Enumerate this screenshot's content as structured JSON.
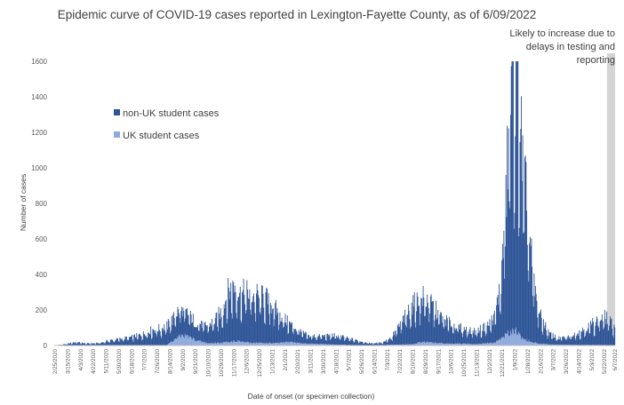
{
  "chart_data": {
    "type": "bar",
    "stacked": true,
    "title": "Epidemic curve of COVID-19 cases reported in Lexington-Fayette County, as of 6/09/2022",
    "xlabel": "Date of onset (or specimen collection)",
    "ylabel": "Number of cases",
    "ylim": [
      0,
      1600
    ],
    "yticks": [
      0,
      200,
      400,
      600,
      800,
      1000,
      1200,
      1400,
      1600
    ],
    "grid": false,
    "legend_position": "upper-left",
    "x_start": "2/25/2020",
    "x_end": "6/7/2022",
    "x_tick_labels": [
      "2/25/2020",
      "3/15/2020",
      "4/3/2020",
      "4/22/2020",
      "5/11/2020",
      "5/30/2020",
      "6/18/2020",
      "7/7/2020",
      "7/26/2020",
      "8/14/2020",
      "9/2/2020",
      "9/21/2020",
      "10/10/2020",
      "10/29/2020",
      "11/17/2020",
      "12/6/2020",
      "12/25/2020",
      "1/13/2021",
      "2/1/2021",
      "2/20/2021",
      "3/11/2021",
      "3/30/2021",
      "4/18/2021",
      "5/7/2021",
      "5/26/2021",
      "6/14/2021",
      "7/3/2021",
      "7/22/2021",
      "8/10/2021",
      "8/29/2021",
      "9/17/2021",
      "10/6/2021",
      "10/25/2021",
      "11/13/2021",
      "12/2/2021",
      "12/21/2021",
      "1/9/2022",
      "1/28/2022",
      "2/16/2022",
      "3/7/2022",
      "3/26/2022",
      "4/14/2022",
      "5/3/2022",
      "5/22/2022",
      "6/7/2022"
    ],
    "series": [
      {
        "name": "non-UK student cases",
        "color": "#2f5597",
        "points": [
          [
            "2/25/2020",
            0
          ],
          [
            "3/14/2020",
            8
          ],
          [
            "3/28/2020",
            18
          ],
          [
            "4/12/2020",
            10
          ],
          [
            "5/1/2020",
            12
          ],
          [
            "5/15/2020",
            25
          ],
          [
            "6/1/2020",
            35
          ],
          [
            "6/20/2020",
            45
          ],
          [
            "7/5/2020",
            60
          ],
          [
            "7/20/2020",
            85
          ],
          [
            "8/1/2020",
            90
          ],
          [
            "8/15/2020",
            110
          ],
          [
            "8/25/2020",
            140
          ],
          [
            "9/5/2020",
            130
          ],
          [
            "9/20/2020",
            100
          ],
          [
            "10/5/2020",
            90
          ],
          [
            "10/20/2020",
            120
          ],
          [
            "11/1/2020",
            180
          ],
          [
            "11/10/2020",
            280
          ],
          [
            "11/20/2020",
            300
          ],
          [
            "11/28/2020",
            250
          ],
          [
            "12/5/2020",
            270
          ],
          [
            "12/15/2020",
            260
          ],
          [
            "12/25/2020",
            250
          ],
          [
            "1/5/2021",
            240
          ],
          [
            "1/15/2021",
            200
          ],
          [
            "1/25/2021",
            150
          ],
          [
            "2/5/2021",
            110
          ],
          [
            "2/20/2021",
            70
          ],
          [
            "3/10/2021",
            40
          ],
          [
            "4/1/2021",
            45
          ],
          [
            "4/15/2021",
            50
          ],
          [
            "5/1/2021",
            40
          ],
          [
            "5/20/2021",
            25
          ],
          [
            "6/10/2021",
            10
          ],
          [
            "6/25/2021",
            12
          ],
          [
            "7/10/2021",
            40
          ],
          [
            "7/25/2021",
            120
          ],
          [
            "8/10/2021",
            210
          ],
          [
            "8/25/2021",
            240
          ],
          [
            "9/5/2021",
            220
          ],
          [
            "9/20/2021",
            150
          ],
          [
            "10/5/2021",
            110
          ],
          [
            "10/25/2021",
            80
          ],
          [
            "11/13/2021",
            70
          ],
          [
            "11/30/2021",
            95
          ],
          [
            "12/10/2021",
            140
          ],
          [
            "12/20/2021",
            300
          ],
          [
            "12/28/2021",
            800
          ],
          [
            "1/3/2022",
            1300
          ],
          [
            "1/8/2022",
            1400
          ],
          [
            "1/15/2022",
            1250
          ],
          [
            "1/22/2022",
            900
          ],
          [
            "1/30/2022",
            600
          ],
          [
            "2/7/2022",
            300
          ],
          [
            "2/16/2022",
            150
          ],
          [
            "3/1/2022",
            60
          ],
          [
            "3/15/2022",
            35
          ],
          [
            "4/1/2022",
            45
          ],
          [
            "4/20/2022",
            80
          ],
          [
            "5/3/2022",
            110
          ],
          [
            "5/15/2022",
            140
          ],
          [
            "5/25/2022",
            150
          ],
          [
            "6/7/2022",
            90
          ]
        ]
      },
      {
        "name": "UK student cases",
        "color": "#8faadc",
        "points": [
          [
            "2/25/2020",
            0
          ],
          [
            "8/10/2020",
            2
          ],
          [
            "8/20/2020",
            30
          ],
          [
            "9/1/2020",
            55
          ],
          [
            "9/10/2020",
            50
          ],
          [
            "9/25/2020",
            25
          ],
          [
            "10/10/2020",
            12
          ],
          [
            "11/1/2020",
            15
          ],
          [
            "11/20/2020",
            25
          ],
          [
            "12/10/2020",
            15
          ],
          [
            "1/20/2021",
            12
          ],
          [
            "2/10/2021",
            20
          ],
          [
            "2/25/2021",
            12
          ],
          [
            "3/20/2021",
            8
          ],
          [
            "5/5/2021",
            3
          ],
          [
            "6/1/2021",
            1
          ],
          [
            "8/10/2021",
            6
          ],
          [
            "8/25/2021",
            20
          ],
          [
            "9/10/2021",
            15
          ],
          [
            "10/1/2021",
            10
          ],
          [
            "11/15/2021",
            8
          ],
          [
            "12/10/2021",
            15
          ],
          [
            "1/1/2022",
            70
          ],
          [
            "1/10/2022",
            90
          ],
          [
            "1/20/2022",
            40
          ],
          [
            "2/5/2022",
            15
          ],
          [
            "3/5/2022",
            5
          ],
          [
            "4/10/2022",
            3
          ],
          [
            "6/7/2022",
            2
          ]
        ]
      }
    ],
    "annotation": {
      "lines": [
        "Likely to increase due to",
        "delays in testing and",
        "reporting"
      ],
      "start": "5/27/2022",
      "end": "6/9/2022"
    }
  }
}
